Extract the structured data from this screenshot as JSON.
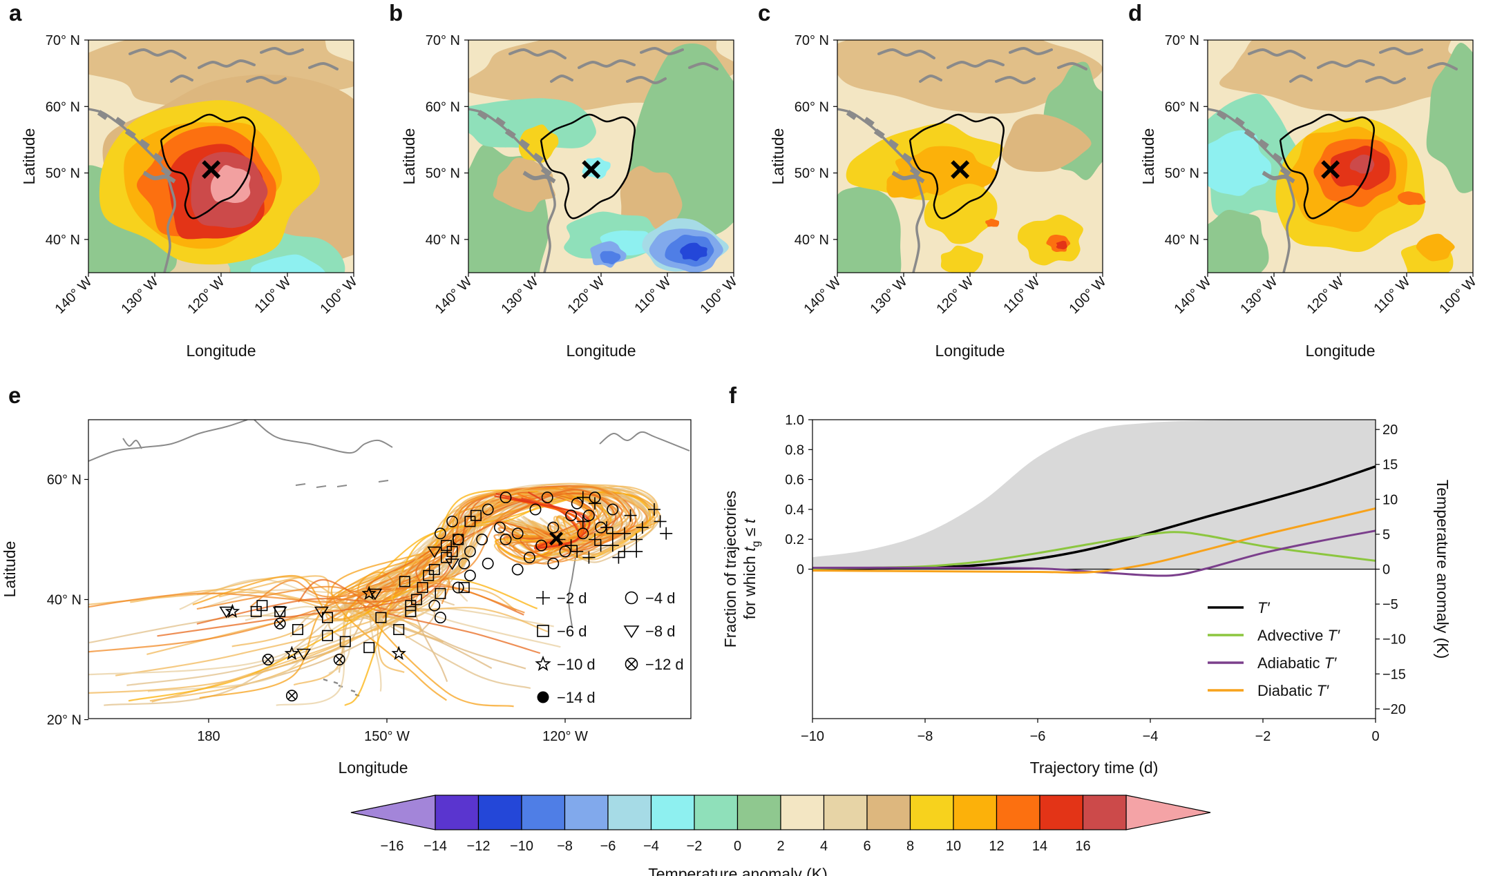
{
  "map_panels": [
    {
      "letter": "a",
      "lat_ticks": [
        "70° N",
        "60° N",
        "50° N",
        "40° N"
      ],
      "lon_ticks": [
        "140° W",
        "130° W",
        "120° W",
        "110° W",
        "100° W"
      ],
      "ylabel": "Latitude",
      "xlabel": "Longitude"
    },
    {
      "letter": "b",
      "lat_ticks": [
        "70° N",
        "60° N",
        "50° N",
        "40° N"
      ],
      "lon_ticks": [
        "140° W",
        "130° W",
        "120° W",
        "110° W",
        "100° W"
      ],
      "ylabel": "Latitude",
      "xlabel": "Longitude"
    },
    {
      "letter": "c",
      "lat_ticks": [
        "70° N",
        "60° N",
        "50° N",
        "40° N"
      ],
      "lon_ticks": [
        "140° W",
        "130° W",
        "120° W",
        "110° W",
        "100° W"
      ],
      "ylabel": "Latitude",
      "xlabel": "Longitude"
    },
    {
      "letter": "d",
      "lat_ticks": [
        "70° N",
        "60° N",
        "50° N",
        "40° N"
      ],
      "lon_ticks": [
        "140° W",
        "130° W",
        "120° W",
        "110° W",
        "100° W"
      ],
      "ylabel": "Latitude",
      "xlabel": "Longitude"
    }
  ],
  "panel_e": {
    "letter": "e",
    "lat_ticks": [
      "60° N",
      "40° N",
      "20° N"
    ],
    "lon_ticks": [
      "180",
      "150° W",
      "120° W"
    ],
    "ylabel": "Latitude",
    "xlabel": "Longitude",
    "legend": [
      {
        "marker": "plus",
        "label": "−2 d"
      },
      {
        "marker": "circle",
        "label": "−4 d"
      },
      {
        "marker": "square",
        "label": "−6 d"
      },
      {
        "marker": "triangle-down",
        "label": "−8 d"
      },
      {
        "marker": "star",
        "label": "−10 d"
      },
      {
        "marker": "circle-x",
        "label": "−12 d"
      },
      {
        "marker": "dot",
        "label": "−14 d"
      }
    ]
  },
  "chart_data": {
    "type": "line",
    "panel": "f",
    "xlabel": "Trajectory time (d)",
    "ylabel_left": "Fraction of trajectories for which t_g ≤ t",
    "ylabel_left_lines": [
      "Fraction of trajectories",
      "for which "
    ],
    "ylabel_left_math": {
      "t": "t",
      "sub": "g",
      "rest": " ≤ t"
    },
    "ylabel_right": "Temperature anomaly (K)",
    "xlim": [
      -10,
      0
    ],
    "x_ticks": [
      "−10",
      "−8",
      "−6",
      "−4",
      "−2",
      "0"
    ],
    "ylim_left": [
      -1.0,
      1.0
    ],
    "y_ticks_left": [
      "1.0",
      "0.8",
      "0.6",
      "0.4",
      "0.2",
      "0"
    ],
    "ylim_right": [
      -21.4,
      21.4
    ],
    "y_ticks_right": [
      "20",
      "15",
      "10",
      "5",
      "0",
      "−5",
      "−10",
      "−15",
      "−20"
    ],
    "fraction_area": {
      "x": [
        -10,
        -9,
        -8,
        -7,
        -6,
        -5,
        -4,
        -3,
        -2,
        -1,
        0
      ],
      "y": [
        0.08,
        0.13,
        0.24,
        0.45,
        0.75,
        0.93,
        0.98,
        0.995,
        1.0,
        1.0,
        1.0
      ],
      "color": "#d9d9d9"
    },
    "series": [
      {
        "name": "T′",
        "color": "#000000",
        "x": [
          -10,
          -9,
          -8,
          -7,
          -6,
          -5,
          -4,
          -3,
          -2,
          -1,
          0
        ],
        "y": [
          0.1,
          0.1,
          0.2,
          0.6,
          1.5,
          3.0,
          5.2,
          7.5,
          9.7,
          12.0,
          14.7
        ]
      },
      {
        "name": "Advective T′",
        "color": "#8cc63f",
        "x": [
          -10,
          -9,
          -8,
          -7,
          -6,
          -5,
          -4,
          -3.5,
          -3,
          -2,
          -1,
          0
        ],
        "y": [
          0.1,
          0.2,
          0.4,
          1.1,
          2.3,
          3.7,
          5.0,
          5.3,
          4.8,
          3.3,
          2.2,
          1.2
        ]
      },
      {
        "name": "Adiabatic T′",
        "color": "#7b3f8c",
        "x": [
          -10,
          -8,
          -6,
          -5,
          -4,
          -3.5,
          -3,
          -2,
          -1,
          0
        ],
        "y": [
          0.2,
          0.2,
          0.1,
          -0.4,
          -0.9,
          -0.8,
          0.1,
          2.3,
          4.0,
          5.5
        ]
      },
      {
        "name": "Diabatic T′",
        "color": "#f7a21b",
        "x": [
          -10,
          -8,
          -6,
          -5,
          -4,
          -3,
          -2,
          -1,
          0
        ],
        "y": [
          -0.2,
          -0.3,
          -0.4,
          -0.4,
          0.8,
          2.8,
          4.9,
          6.8,
          8.7
        ]
      }
    ]
  },
  "colorbar": {
    "label": "Temperature anomaly (K)",
    "ticks": [
      "−16",
      "−14",
      "−12",
      "−10",
      "−8",
      "−6",
      "−4",
      "−2",
      "0",
      "2",
      "4",
      "6",
      "8",
      "10",
      "12",
      "14",
      "16"
    ],
    "under_color": "#a385d9",
    "over_color": "#f4a3a6",
    "colors": [
      "#5a35cf",
      "#2447d8",
      "#4f7ee6",
      "#81a9ec",
      "#a6dbe6",
      "#8ef0f0",
      "#8fe0ba",
      "#8fc88f",
      "#f3e6c3",
      "#e7d4a6",
      "#ddb77e",
      "#f7d21d",
      "#fcb10a",
      "#fc7010",
      "#e33417",
      "#cc4a4a"
    ]
  },
  "marker_label": "×"
}
